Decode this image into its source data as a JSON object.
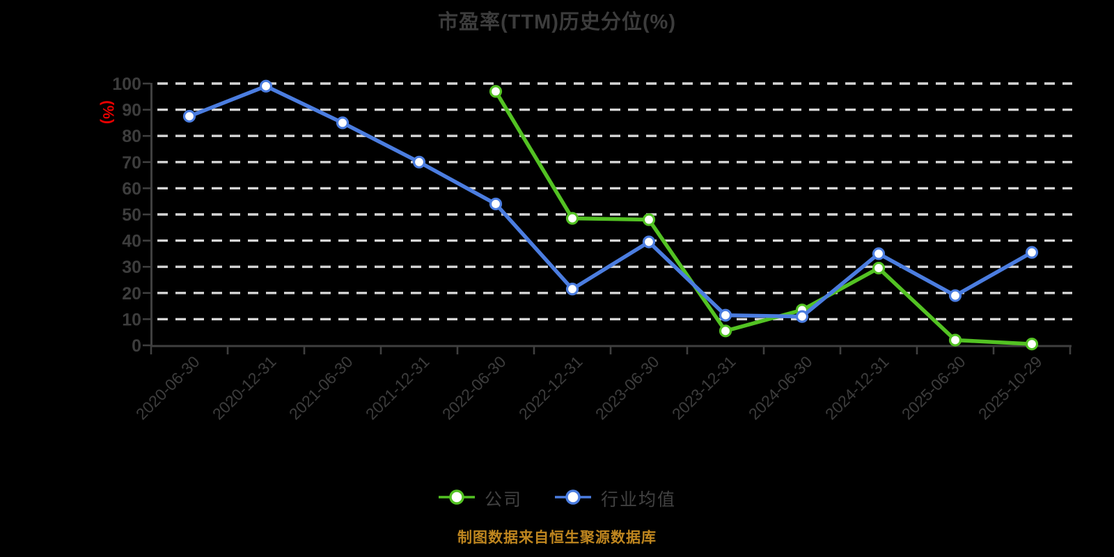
{
  "title": "市盈率(TTM)历史分位(%)",
  "caption": "制图数据来自恒生聚源数据库",
  "colors": {
    "background": "#000000",
    "title": "#3c3c3c",
    "axis": "#3f3f3f",
    "tick_label": "#3d3d3d",
    "grid": "#d6d6d6",
    "y_unit": "#e60000",
    "legend_text": "#424242",
    "caption": "#bf861f",
    "marker_fill": "#ffffff",
    "company": "#53c223",
    "industry": "#4b7de0"
  },
  "y_axis": {
    "unit_label": "(%)",
    "ticks": [
      0,
      10,
      20,
      30,
      40,
      50,
      60,
      70,
      80,
      90,
      100
    ]
  },
  "legend": {
    "items": [
      {
        "label": "公司",
        "color_key": "company"
      },
      {
        "label": "行业均值",
        "color_key": "industry"
      }
    ]
  },
  "chart_data": {
    "type": "line",
    "title": "市盈率(TTM)历史分位(%)",
    "xlabel": "",
    "ylabel": "(%)",
    "ylim": [
      0,
      100
    ],
    "grid": "horizontal-dashed",
    "legend_position": "bottom",
    "categories": [
      "2020-06-30",
      "2020-12-31",
      "2021-06-30",
      "2021-12-31",
      "2022-06-30",
      "2022-12-31",
      "2023-06-30",
      "2023-12-31",
      "2024-06-30",
      "2024-12-31",
      "2025-06-30",
      "2025-10-29"
    ],
    "series": [
      {
        "name": "公司",
        "color_key": "company",
        "values": [
          null,
          null,
          null,
          null,
          97,
          48.5,
          48,
          5.5,
          13.5,
          29.5,
          2,
          0.5
        ]
      },
      {
        "name": "行业均值",
        "color_key": "industry",
        "values": [
          87.5,
          99,
          85,
          70,
          54,
          21.5,
          39.5,
          11.5,
          11,
          35,
          19,
          35.5
        ]
      }
    ]
  }
}
